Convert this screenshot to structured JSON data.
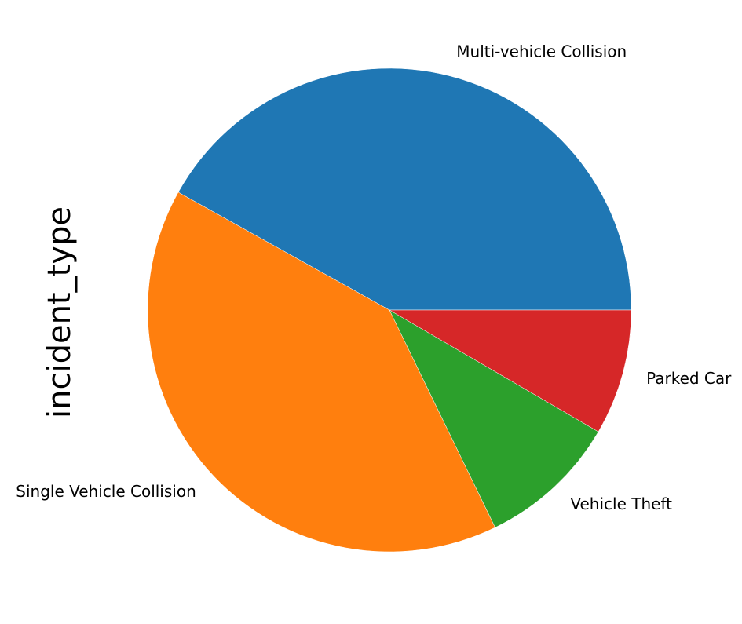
{
  "chart_data": {
    "type": "pie",
    "ylabel": "incident_type",
    "slices": [
      {
        "label": "Multi-vehicle Collision",
        "value": 419,
        "color": "#1f77b4"
      },
      {
        "label": "Single Vehicle Collision",
        "value": 403,
        "color": "#ff7f0e"
      },
      {
        "label": "Vehicle Theft",
        "value": 94,
        "color": "#2ca02c"
      },
      {
        "label": "Parked Car",
        "value": 84,
        "color": "#d62728"
      }
    ]
  }
}
